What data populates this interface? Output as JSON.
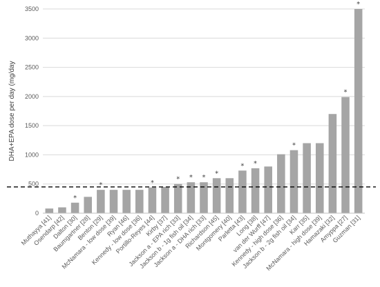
{
  "chart_data": {
    "type": "bar",
    "ylabel": "DHA+EPA dose per day (mg/day",
    "ylim": [
      0,
      3500
    ],
    "yticks": [
      0,
      500,
      1000,
      1500,
      2000,
      2500,
      3000,
      3500
    ],
    "grid": true,
    "bar_color": "#a5a5a5",
    "reference_line": {
      "value": 450,
      "style": "dashed",
      "color": "#000000"
    },
    "categories": [
      "Muthayya [41]",
      "Osendarp [42]",
      "Dalton [30]",
      "Baumgartner [28]",
      "Benton [29]",
      "McNamara - low dose [39]",
      "Ryan [46]",
      "Kennedy - low dose [36]",
      "Portillo-Reyes [44]",
      "Kirby [37]",
      "Jackson a - EPA rich [33]",
      "Jackson b - 1g fish oil [34]",
      "Jackson a - DHA rich [33]",
      "Richardson [45]",
      "Montgomery [40]",
      "Parletta [43]",
      "Long [38]",
      "van der Wurff [47]",
      "Kennedy - high dose [36]",
      "Jackson b - 2g fish oil [34]",
      "Karr [35]",
      "McNamara - high dose [39]",
      "Hamazaki [32]",
      "Amyppa [27]",
      "Guzman [31]"
    ],
    "values": [
      80,
      100,
      180,
      280,
      400,
      400,
      400,
      400,
      440,
      450,
      500,
      530,
      530,
      600,
      600,
      730,
      770,
      800,
      1010,
      1080,
      1200,
      1200,
      1700,
      1990,
      3500
    ],
    "significant": [
      false,
      false,
      true,
      false,
      true,
      false,
      false,
      false,
      true,
      false,
      true,
      true,
      true,
      true,
      false,
      true,
      true,
      false,
      false,
      true,
      false,
      false,
      false,
      true,
      true
    ],
    "marker_symbol": "*"
  }
}
